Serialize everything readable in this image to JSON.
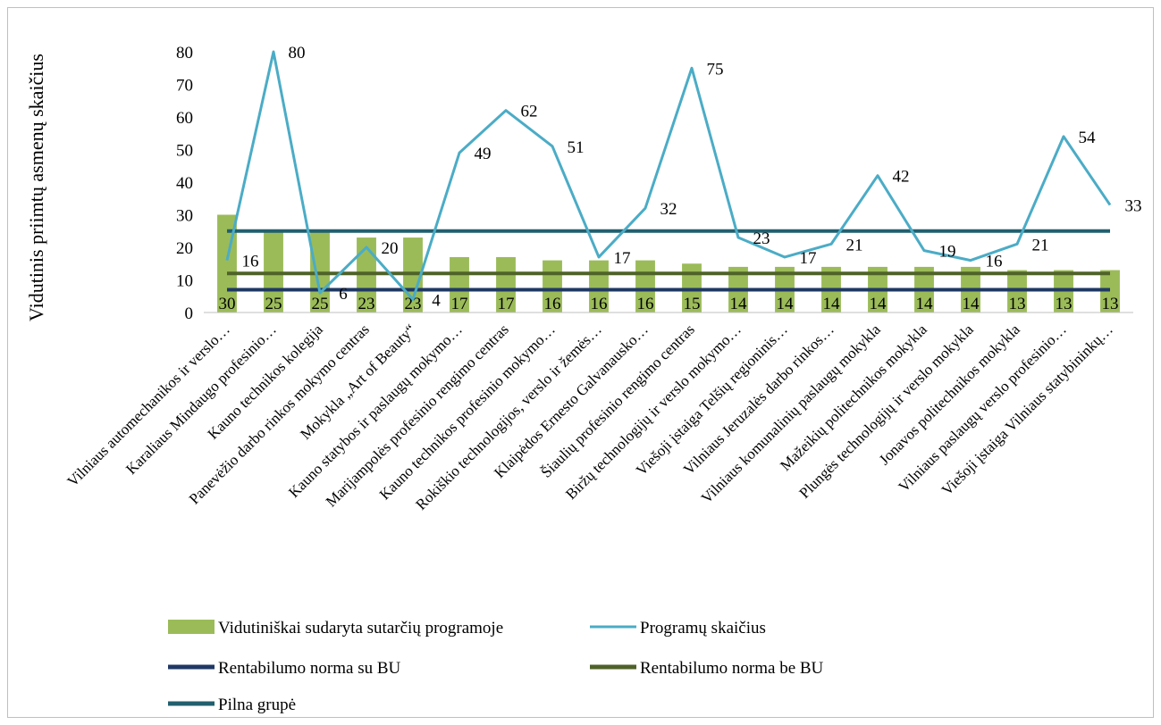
{
  "chart_data": {
    "type": "bar",
    "title": "",
    "xlabel": "",
    "ylabel": "Vidutinis priimtų asmenų skaičius",
    "ylim": [
      0,
      80
    ],
    "yticks": [
      "0",
      "10",
      "20",
      "30",
      "40",
      "50",
      "60",
      "70",
      "80"
    ],
    "grid": false,
    "legend_position": "bottom",
    "categories": [
      "Vilniaus automechanikos ir verslo…",
      "Karaliaus Mindaugo profesinio…",
      "Kauno technikos kolegija",
      "Panevėžio darbo rinkos mokymo centras",
      "Mokykla „Art of Beauty“",
      "Kauno statybos ir paslaugų mokymo…",
      "Marijampolės profesinio rengimo centras",
      "Kauno technikos profesinio mokymo…",
      "Rokiškio technologijos, verslo ir žemės…",
      "Klaipėdos Ernesto Galvanausko…",
      "Šiaulių profesinio rengimo centras",
      "Biržų technologijų ir verslo mokymo…",
      "Viešoji įstaiga Telšių regioninis…",
      "Vilniaus Jeruzalės darbo rinkos…",
      "Vilniaus komunalinių paslaugų mokykla",
      "Mažeikių politechnikos mokykla",
      "Plungės technologijų ir verslo mokykla",
      "Jonavos politechnikos mokykla",
      "Vilniaus paslaugų verslo profesinio…",
      "Viešoji įstaiga Vilniaus statybininkų…"
    ],
    "series": [
      {
        "name": "Vidutiniškai sudaryta sutarčių programoje",
        "type": "bar",
        "color": "#9bbb59",
        "values": [
          30,
          25,
          25,
          23,
          23,
          17,
          17,
          16,
          16,
          16,
          15,
          14,
          14,
          14,
          14,
          14,
          14,
          13,
          13,
          13
        ],
        "labels": [
          "30",
          "25",
          "25",
          "23",
          "23",
          "17",
          "17",
          "16",
          "16",
          "16",
          "15",
          "14",
          "14",
          "14",
          "14",
          "14",
          "14",
          "13",
          "13",
          "13"
        ]
      },
      {
        "name": "Programų skaičius",
        "type": "line",
        "color": "#4bacc6",
        "values": [
          16,
          80,
          6,
          20,
          4,
          49,
          62,
          51,
          17,
          32,
          75,
          23,
          17,
          21,
          42,
          19,
          16,
          21,
          54,
          33
        ],
        "labels": [
          "16",
          "80",
          "6",
          "20",
          "4",
          "49",
          "62",
          "51",
          "17",
          "32",
          "75",
          "23",
          "17",
          "21",
          "42",
          "19",
          "16",
          "21",
          "54",
          "33"
        ]
      },
      {
        "name": "Rentabilumo norma su BU",
        "type": "line",
        "color": "#1f3864",
        "values": [
          7,
          7,
          7,
          7,
          7,
          7,
          7,
          7,
          7,
          7,
          7,
          7,
          7,
          7,
          7,
          7,
          7,
          7,
          7,
          7
        ]
      },
      {
        "name": "Rentabilumo norma be BU",
        "type": "line",
        "color": "#4f6228",
        "values": [
          12,
          12,
          12,
          12,
          12,
          12,
          12,
          12,
          12,
          12,
          12,
          12,
          12,
          12,
          12,
          12,
          12,
          12,
          12,
          12
        ]
      },
      {
        "name": "Pilna grupė",
        "type": "line",
        "color": "#215f6e",
        "values": [
          25,
          25,
          25,
          25,
          25,
          25,
          25,
          25,
          25,
          25,
          25,
          25,
          25,
          25,
          25,
          25,
          25,
          25,
          25,
          25
        ]
      }
    ]
  }
}
